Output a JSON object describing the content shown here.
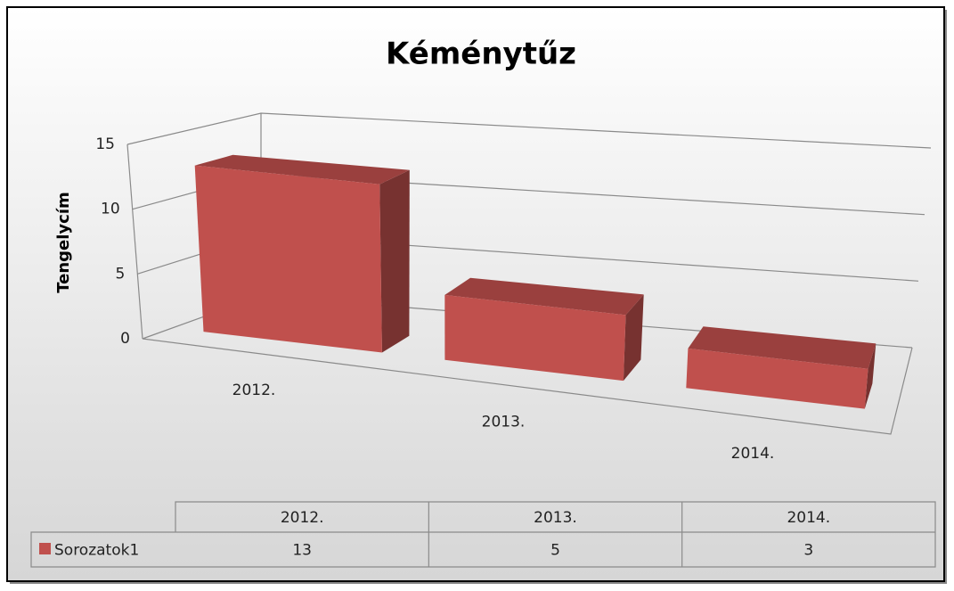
{
  "chart_data": {
    "type": "bar3d",
    "title": "Kéménytűz",
    "y_label": "Tengelycím",
    "categories": [
      "2012.",
      "2013.",
      "2014."
    ],
    "series": [
      {
        "name": "Sorozatok1",
        "color": "#c0504d",
        "values": [
          13,
          5,
          3
        ]
      }
    ],
    "ylim": [
      0,
      15
    ],
    "yticks": [
      0,
      5,
      10,
      15
    ],
    "grid": true,
    "data_table": true
  }
}
